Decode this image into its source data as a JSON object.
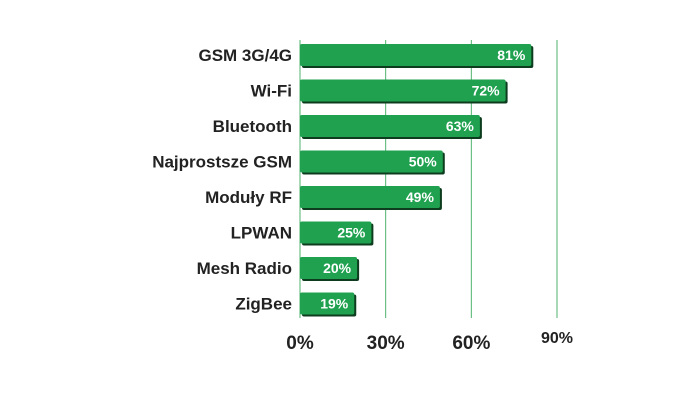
{
  "chart_data": {
    "type": "bar",
    "orientation": "horizontal",
    "categories": [
      "GSM 3G/4G",
      "Wi-Fi",
      "Bluetooth",
      "Najprostsze GSM",
      "Moduły RF",
      "LPWAN",
      "Mesh Radio",
      "ZigBee"
    ],
    "values": [
      81,
      72,
      63,
      50,
      49,
      25,
      20,
      19
    ],
    "value_labels": [
      "81%",
      "72%",
      "63%",
      "50%",
      "49%",
      "25%",
      "20%",
      "19%"
    ],
    "xlim": [
      0,
      90
    ],
    "x_ticks": [
      0,
      30,
      60,
      90
    ],
    "x_tick_labels": [
      "0%",
      "30%",
      "60%",
      "90%"
    ],
    "grid": true,
    "colors": {
      "bar": "#1fa14f",
      "bar_shadow": "#0d3d1e",
      "grid": "#4fb36e",
      "text": "#222222",
      "value_text": "#ffffff"
    }
  }
}
